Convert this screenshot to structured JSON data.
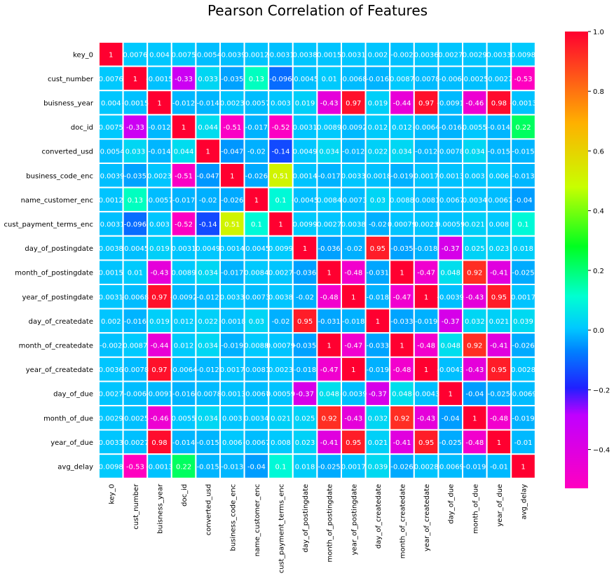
{
  "chart_data": {
    "type": "heatmap",
    "title": "Pearson Correlation of Features",
    "labels": [
      "key_0",
      "cust_number",
      "buisness_year",
      "doc_id",
      "converted_usd",
      "business_code_enc",
      "name_customer_enc",
      "cust_payment_terms_enc",
      "day_of_postingdate",
      "month_of_postingdate",
      "year_of_postingdate",
      "day_of_createdate",
      "month_of_createdate",
      "year_of_createdate",
      "day_of_due",
      "month_of_due",
      "year_of_due",
      "avg_delay"
    ],
    "values": [
      [
        1,
        0.0076,
        0.004,
        0.0075,
        -0.0054,
        -0.0039,
        0.0012,
        -0.0031,
        0.0038,
        0.0015,
        0.0031,
        0.002,
        -0.002,
        0.0036,
        0.0027,
        0.0029,
        0.0033,
        0.0098
      ],
      [
        0.0076,
        1,
        -0.0015,
        -0.33,
        0.033,
        -0.035,
        0.13,
        -0.096,
        -0.0045,
        0.01,
        -0.0068,
        -0.016,
        0.0087,
        -0.0078,
        -0.006,
        -0.0025,
        -0.0027,
        -0.53
      ],
      [
        0.004,
        -0.0015,
        1,
        -0.012,
        -0.014,
        0.0023,
        -0.0057,
        0.003,
        0.019,
        -0.43,
        0.97,
        0.019,
        -0.44,
        0.97,
        -0.0091,
        -0.46,
        0.98,
        -0.0013
      ],
      [
        0.0075,
        -0.33,
        -0.012,
        1,
        0.044,
        -0.51,
        -0.017,
        -0.52,
        0.0031,
        0.0089,
        -0.0092,
        0.012,
        0.012,
        -0.0064,
        -0.016,
        0.0055,
        -0.014,
        0.22
      ],
      [
        -0.0054,
        0.033,
        -0.014,
        0.044,
        1,
        -0.047,
        -0.02,
        -0.14,
        0.0049,
        0.034,
        -0.012,
        0.022,
        0.034,
        -0.012,
        -0.0078,
        0.034,
        -0.015,
        -0.015
      ],
      [
        -0.0039,
        -0.035,
        0.0023,
        -0.51,
        -0.047,
        1,
        -0.026,
        0.51,
        0.0014,
        -0.017,
        0.0033,
        -0.0018,
        -0.019,
        0.0017,
        -0.0013,
        0.003,
        0.006,
        -0.013
      ],
      [
        0.0012,
        0.13,
        -0.0057,
        -0.017,
        -0.02,
        -0.026,
        1,
        0.1,
        -0.0045,
        0.0084,
        -0.0073,
        0.03,
        0.0088,
        -0.0081,
        -0.0067,
        0.0034,
        -0.0067,
        -0.04
      ],
      [
        -0.0031,
        -0.096,
        0.003,
        -0.52,
        -0.14,
        0.51,
        0.1,
        1,
        0.0099,
        0.0027,
        0.0038,
        -0.02,
        0.00079,
        0.0023,
        0.00059,
        0.021,
        0.008,
        0.1
      ],
      [
        0.0038,
        -0.0045,
        0.019,
        0.0031,
        0.0049,
        0.0014,
        -0.0045,
        0.0099,
        1,
        -0.036,
        -0.02,
        0.95,
        -0.035,
        -0.018,
        -0.37,
        0.025,
        0.023,
        0.018
      ],
      [
        0.0015,
        0.01,
        -0.43,
        0.0089,
        0.034,
        -0.017,
        0.0084,
        0.0027,
        -0.036,
        1,
        -0.48,
        -0.031,
        1,
        -0.47,
        0.048,
        0.92,
        -0.41,
        -0.025
      ],
      [
        0.0031,
        -0.0068,
        0.97,
        -0.0092,
        -0.012,
        0.0033,
        -0.0073,
        0.0038,
        -0.02,
        -0.48,
        1,
        -0.018,
        -0.47,
        1,
        -0.0039,
        -0.43,
        0.95,
        0.0017
      ],
      [
        0.002,
        -0.016,
        0.019,
        0.012,
        0.022,
        -0.0018,
        0.03,
        -0.02,
        0.95,
        -0.031,
        -0.018,
        1,
        -0.033,
        -0.019,
        -0.37,
        0.032,
        0.021,
        0.039
      ],
      [
        -0.002,
        0.0087,
        -0.44,
        0.012,
        0.034,
        -0.019,
        0.0088,
        0.00079,
        -0.035,
        1,
        -0.47,
        -0.033,
        1,
        -0.48,
        0.048,
        0.92,
        -0.41,
        -0.026
      ],
      [
        0.0036,
        -0.0078,
        0.97,
        -0.0064,
        -0.012,
        0.0017,
        -0.0081,
        0.0023,
        -0.018,
        -0.47,
        1,
        -0.019,
        -0.48,
        1,
        -0.0043,
        -0.43,
        0.95,
        0.0028
      ],
      [
        0.0027,
        -0.006,
        -0.0091,
        -0.016,
        -0.0078,
        -0.0013,
        -0.0067,
        0.00059,
        -0.37,
        0.048,
        -0.0039,
        -0.37,
        0.048,
        -0.0043,
        1,
        -0.04,
        -0.025,
        -0.0069
      ],
      [
        0.0029,
        -0.0025,
        -0.46,
        0.0055,
        0.034,
        0.003,
        0.0034,
        0.021,
        0.025,
        0.92,
        -0.43,
        0.032,
        0.92,
        -0.43,
        -0.04,
        1,
        -0.48,
        -0.019
      ],
      [
        0.0033,
        -0.0027,
        0.98,
        -0.014,
        -0.015,
        0.006,
        -0.0067,
        0.008,
        0.023,
        -0.41,
        0.95,
        0.021,
        -0.41,
        0.95,
        -0.025,
        -0.48,
        1,
        -0.01
      ],
      [
        0.0098,
        -0.53,
        -0.0013,
        0.22,
        -0.015,
        -0.013,
        -0.04,
        0.1,
        0.018,
        -0.025,
        0.0017,
        0.039,
        -0.026,
        0.0028,
        -0.0069,
        -0.019,
        -0.01,
        1
      ]
    ],
    "colorbar": {
      "colormap": "gist_rainbow_r",
      "vmin": -0.53,
      "vmax": 1,
      "ticks": [
        1.0,
        0.8,
        0.6,
        0.4,
        0.2,
        0.0,
        -0.2,
        -0.4
      ],
      "tick_labels": [
        "1.0",
        "0.8",
        "0.6",
        "0.4",
        "0.2",
        "0.0",
        "−0.2",
        "−0.4"
      ]
    },
    "annotations": true,
    "grid_line_color": "#ffffff",
    "text_color": "#ffffff"
  }
}
